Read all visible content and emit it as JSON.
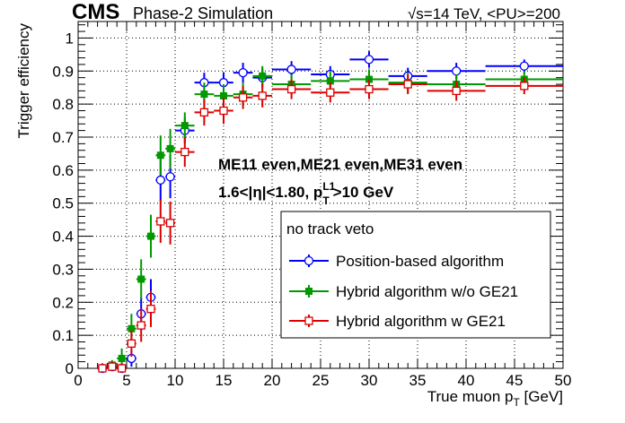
{
  "header": {
    "cms_label": "CMS",
    "subtitle": "Phase-2 Simulation",
    "energy_label": "√s=14 TeV, <PU>=200"
  },
  "annotations": {
    "line1": "ME11 even,ME21 even,ME31 even",
    "line2_prefix": "1.6<|η|<1.80, p",
    "line2_sup": "L1",
    "line2_sub": "T",
    "line2_suffix": ">10 GeV"
  },
  "legend": {
    "header": "no track veto"
  },
  "chart_data": {
    "type": "scatter",
    "xlabel": "True muon p",
    "xlabel_sub": "T",
    "xlabel_unit": " [GeV]",
    "ylabel": "Trigger efficiency",
    "xlim": [
      0,
      50
    ],
    "ylim": [
      0,
      1.05
    ],
    "x_ticks": [
      0,
      5,
      10,
      15,
      20,
      25,
      30,
      35,
      40,
      45,
      50
    ],
    "y_ticks": [
      0,
      0.1,
      0.2,
      0.3,
      0.4,
      0.5,
      0.6,
      0.7,
      0.8,
      0.9,
      1
    ],
    "y_tick_labels": [
      "0",
      "0.1",
      "0.2",
      "0.3",
      "0.4",
      "0.5",
      "0.6",
      "0.7",
      "0.8",
      "0.9",
      "1"
    ],
    "grid": true,
    "series": [
      {
        "name": "Position-based algorithm",
        "color": "#0000ff",
        "marker": "open-circle",
        "points": [
          {
            "x": 2.5,
            "y": 0.0,
            "xerr": 0.5,
            "yerr": 0.015
          },
          {
            "x": 3.5,
            "y": 0.005,
            "xerr": 0.5,
            "yerr": 0.015
          },
          {
            "x": 4.5,
            "y": 0.0,
            "xerr": 0.5,
            "yerr": 0.015
          },
          {
            "x": 5.5,
            "y": 0.03,
            "xerr": 0.5,
            "yerr": 0.025
          },
          {
            "x": 6.5,
            "y": 0.165,
            "xerr": 0.5,
            "yerr": 0.05
          },
          {
            "x": 7.5,
            "y": 0.215,
            "xerr": 0.5,
            "yerr": 0.055
          },
          {
            "x": 8.5,
            "y": 0.57,
            "xerr": 0.5,
            "yerr": 0.065
          },
          {
            "x": 9.5,
            "y": 0.58,
            "xerr": 0.5,
            "yerr": 0.065
          },
          {
            "x": 11,
            "y": 0.72,
            "xerr": 1,
            "yerr": 0.04
          },
          {
            "x": 13,
            "y": 0.865,
            "xerr": 1,
            "yerr": 0.03
          },
          {
            "x": 15,
            "y": 0.865,
            "xerr": 1,
            "yerr": 0.03
          },
          {
            "x": 17,
            "y": 0.895,
            "xerr": 1,
            "yerr": 0.03
          },
          {
            "x": 19,
            "y": 0.88,
            "xerr": 1,
            "yerr": 0.03
          },
          {
            "x": 22,
            "y": 0.905,
            "xerr": 2,
            "yerr": 0.025
          },
          {
            "x": 26,
            "y": 0.89,
            "xerr": 2,
            "yerr": 0.025
          },
          {
            "x": 30,
            "y": 0.935,
            "xerr": 2,
            "yerr": 0.025
          },
          {
            "x": 34,
            "y": 0.885,
            "xerr": 2,
            "yerr": 0.025
          },
          {
            "x": 39,
            "y": 0.9,
            "xerr": 3,
            "yerr": 0.025
          },
          {
            "x": 46,
            "y": 0.915,
            "xerr": 4,
            "yerr": 0.02
          }
        ]
      },
      {
        "name": "Hybrid algorithm w/o GE21",
        "color": "#009900",
        "marker": "filled-square",
        "points": [
          {
            "x": 2.5,
            "y": 0.0,
            "xerr": 0.5,
            "yerr": 0.015
          },
          {
            "x": 3.5,
            "y": 0.01,
            "xerr": 0.5,
            "yerr": 0.015
          },
          {
            "x": 4.5,
            "y": 0.03,
            "xerr": 0.5,
            "yerr": 0.03
          },
          {
            "x": 5.5,
            "y": 0.12,
            "xerr": 0.5,
            "yerr": 0.045
          },
          {
            "x": 6.5,
            "y": 0.27,
            "xerr": 0.5,
            "yerr": 0.06
          },
          {
            "x": 7.5,
            "y": 0.4,
            "xerr": 0.5,
            "yerr": 0.065
          },
          {
            "x": 8.5,
            "y": 0.645,
            "xerr": 0.5,
            "yerr": 0.06
          },
          {
            "x": 9.5,
            "y": 0.665,
            "xerr": 0.5,
            "yerr": 0.06
          },
          {
            "x": 11,
            "y": 0.735,
            "xerr": 1,
            "yerr": 0.04
          },
          {
            "x": 13,
            "y": 0.83,
            "xerr": 1,
            "yerr": 0.035
          },
          {
            "x": 15,
            "y": 0.825,
            "xerr": 1,
            "yerr": 0.035
          },
          {
            "x": 17,
            "y": 0.83,
            "xerr": 1,
            "yerr": 0.035
          },
          {
            "x": 19,
            "y": 0.885,
            "xerr": 1,
            "yerr": 0.03
          },
          {
            "x": 22,
            "y": 0.86,
            "xerr": 2,
            "yerr": 0.03
          },
          {
            "x": 26,
            "y": 0.87,
            "xerr": 2,
            "yerr": 0.03
          },
          {
            "x": 30,
            "y": 0.875,
            "xerr": 2,
            "yerr": 0.03
          },
          {
            "x": 34,
            "y": 0.865,
            "xerr": 2,
            "yerr": 0.03
          },
          {
            "x": 39,
            "y": 0.86,
            "xerr": 3,
            "yerr": 0.03
          },
          {
            "x": 46,
            "y": 0.875,
            "xerr": 4,
            "yerr": 0.025
          }
        ]
      },
      {
        "name": "Hybrid algorithm w GE21",
        "color": "#dd0000",
        "marker": "open-square",
        "points": [
          {
            "x": 2.5,
            "y": 0.0,
            "xerr": 0.5,
            "yerr": 0.015
          },
          {
            "x": 3.5,
            "y": 0.005,
            "xerr": 0.5,
            "yerr": 0.015
          },
          {
            "x": 4.5,
            "y": 0.0,
            "xerr": 0.5,
            "yerr": 0.015
          },
          {
            "x": 5.5,
            "y": 0.075,
            "xerr": 0.5,
            "yerr": 0.04
          },
          {
            "x": 6.5,
            "y": 0.13,
            "xerr": 0.5,
            "yerr": 0.05
          },
          {
            "x": 7.5,
            "y": 0.18,
            "xerr": 0.5,
            "yerr": 0.055
          },
          {
            "x": 8.5,
            "y": 0.445,
            "xerr": 0.5,
            "yerr": 0.065
          },
          {
            "x": 9.5,
            "y": 0.44,
            "xerr": 0.5,
            "yerr": 0.065
          },
          {
            "x": 11,
            "y": 0.655,
            "xerr": 1,
            "yerr": 0.045
          },
          {
            "x": 13,
            "y": 0.775,
            "xerr": 1,
            "yerr": 0.04
          },
          {
            "x": 15,
            "y": 0.78,
            "xerr": 1,
            "yerr": 0.04
          },
          {
            "x": 17,
            "y": 0.82,
            "xerr": 1,
            "yerr": 0.035
          },
          {
            "x": 19,
            "y": 0.825,
            "xerr": 1,
            "yerr": 0.035
          },
          {
            "x": 22,
            "y": 0.845,
            "xerr": 2,
            "yerr": 0.03
          },
          {
            "x": 26,
            "y": 0.835,
            "xerr": 2,
            "yerr": 0.03
          },
          {
            "x": 30,
            "y": 0.845,
            "xerr": 2,
            "yerr": 0.03
          },
          {
            "x": 34,
            "y": 0.86,
            "xerr": 2,
            "yerr": 0.03
          },
          {
            "x": 39,
            "y": 0.84,
            "xerr": 3,
            "yerr": 0.03
          },
          {
            "x": 46,
            "y": 0.855,
            "xerr": 4,
            "yerr": 0.025
          }
        ]
      }
    ]
  }
}
